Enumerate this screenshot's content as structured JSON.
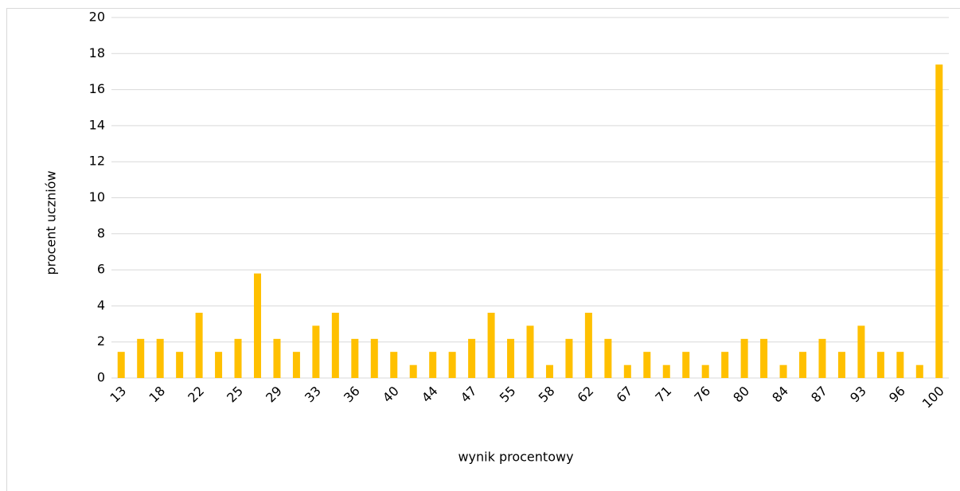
{
  "chart_data": {
    "type": "bar",
    "x_label": "wynik procentowy",
    "y_label": "procent uczniów",
    "categories": [
      "13",
      null,
      "18",
      null,
      "22",
      null,
      "25",
      null,
      "29",
      null,
      "33",
      null,
      "36",
      null,
      "40",
      null,
      "44",
      null,
      "47",
      null,
      "55",
      null,
      "58",
      null,
      "62",
      null,
      "67",
      null,
      "71",
      null,
      "76",
      null,
      "80",
      null,
      "84",
      null,
      "87",
      null,
      "93",
      null,
      "96",
      null,
      "100"
    ],
    "values": [
      1.45,
      2.17,
      2.17,
      1.45,
      3.62,
      1.45,
      2.17,
      5.8,
      2.17,
      1.45,
      2.9,
      3.62,
      2.17,
      2.17,
      1.45,
      0.72,
      1.45,
      1.45,
      2.17,
      3.62,
      2.17,
      2.9,
      0.72,
      2.17,
      3.62,
      2.17,
      0.72,
      1.45,
      0.72,
      1.45,
      0.72,
      1.45,
      2.17,
      2.17,
      0.72,
      1.45,
      2.17,
      1.45,
      2.9,
      1.45,
      1.45,
      0.72,
      17.39
    ],
    "color": "#ffc000",
    "ylim": [
      0,
      20
    ],
    "yticks": [
      0,
      2,
      4,
      6,
      8,
      10,
      12,
      14,
      16,
      18,
      20
    ],
    "grid": true
  }
}
